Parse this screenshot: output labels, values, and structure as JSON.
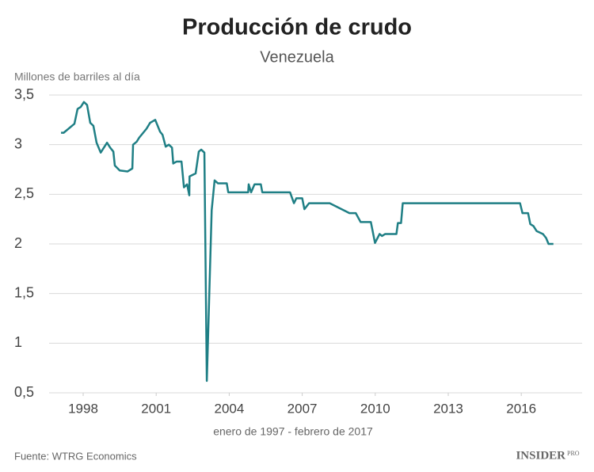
{
  "chart_data": {
    "type": "line",
    "title": "Producción de crudo",
    "subtitle": "Venezuela",
    "y_label": "Millones de barriles al día",
    "x_label": "enero de 1997 - febrero de  2017",
    "source": "Fuente: WTRG Economics",
    "brand": "INSIDER",
    "brand_suffix": "PRO",
    "color": "#1f7f85",
    "grid": true,
    "xlim": [
      1996.6,
      2018.5
    ],
    "xticks": [
      1998,
      2001,
      2004,
      2007,
      2010,
      2013,
      2016
    ],
    "ylim": [
      0.5,
      3.5
    ],
    "yticks": [
      {
        "value": 0.5,
        "label": "0,5"
      },
      1,
      {
        "value": 1.5,
        "label": "1,5"
      },
      2,
      {
        "value": 2.5,
        "label": "2,5"
      },
      3,
      {
        "value": 3.5,
        "label": "3,5"
      }
    ],
    "x": [
      1997.09,
      1997.2,
      1997.64,
      1997.77,
      1997.9,
      1998.03,
      1998.16,
      1998.29,
      1998.42,
      1998.55,
      1998.72,
      1998.85,
      1998.98,
      1999.11,
      1999.24,
      1999.3,
      1999.5,
      1999.82,
      2000.02,
      2000.05,
      2000.2,
      2000.3,
      2000.6,
      2000.75,
      2000.96,
      2001.16,
      2001.26,
      2001.39,
      2001.52,
      2001.65,
      2001.7,
      2001.84,
      2002.04,
      2002.14,
      2002.27,
      2002.36,
      2002.37,
      2002.62,
      2002.75,
      2002.85,
      2002.98,
      2003.08,
      2003.28,
      2003.4,
      2003.54,
      2003.9,
      2003.96,
      2004.78,
      2004.8,
      2004.9,
      2005.04,
      2005.3,
      2005.36,
      2006.5,
      2006.66,
      2006.76,
      2007.0,
      2007.09,
      2007.28,
      2008.13,
      2008.94,
      2009.2,
      2009.4,
      2009.82,
      2009.99,
      2010.18,
      2010.28,
      2010.41,
      2010.87,
      2010.93,
      2011.06,
      2011.13,
      2015.95,
      2016.05,
      2016.28,
      2016.37,
      2016.5,
      2016.63,
      2016.89,
      2017.02,
      2017.12,
      2017.32
    ],
    "values": [
      3.12,
      3.12,
      3.21,
      3.36,
      3.38,
      3.43,
      3.4,
      3.22,
      3.19,
      3.02,
      2.92,
      2.97,
      3.02,
      2.97,
      2.93,
      2.79,
      2.74,
      2.73,
      2.76,
      3.0,
      3.03,
      3.07,
      3.16,
      3.22,
      3.25,
      3.13,
      3.1,
      2.98,
      3.0,
      2.97,
      2.81,
      2.83,
      2.83,
      2.57,
      2.6,
      2.49,
      2.68,
      2.71,
      2.93,
      2.95,
      2.92,
      0.62,
      2.34,
      2.64,
      2.61,
      2.61,
      2.52,
      2.52,
      2.6,
      2.52,
      2.6,
      2.6,
      2.52,
      2.52,
      2.41,
      2.46,
      2.46,
      2.35,
      2.41,
      2.41,
      2.31,
      2.31,
      2.22,
      2.22,
      2.01,
      2.1,
      2.08,
      2.1,
      2.1,
      2.21,
      2.21,
      2.41,
      2.41,
      2.31,
      2.31,
      2.2,
      2.18,
      2.13,
      2.1,
      2.06,
      2.0,
      2.0
    ]
  }
}
